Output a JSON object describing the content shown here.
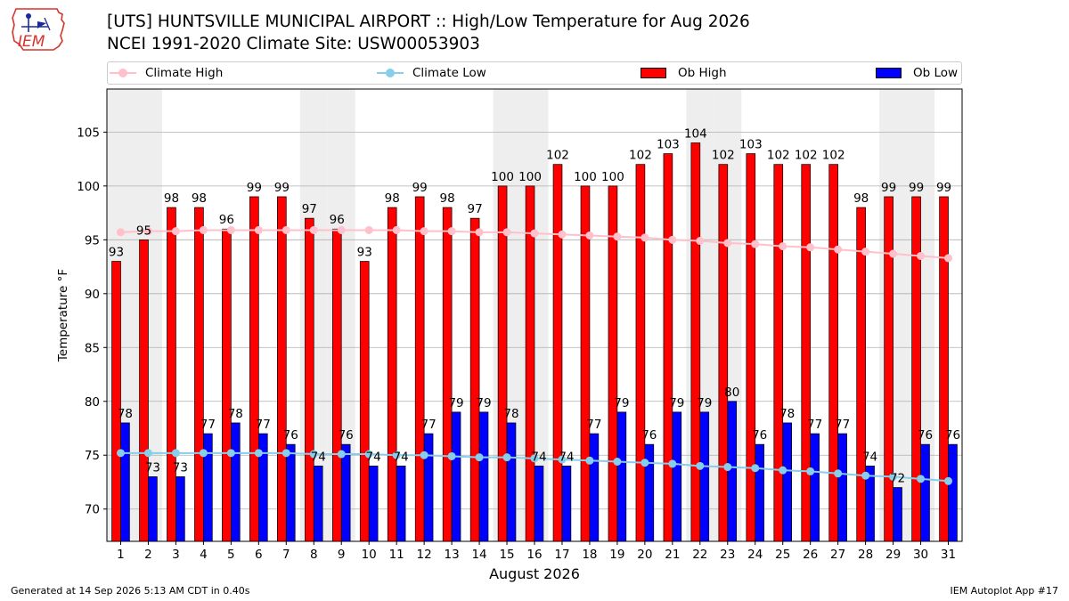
{
  "logo": {
    "text": "IEM",
    "color": "#d9342b"
  },
  "header": {
    "title_line1": "[UTS] HUNTSVILLE MUNICIPAL AIRPORT :: High/Low Temperature for Aug 2026",
    "title_line2": "NCEI 1991-2020 Climate Site: USW00053903"
  },
  "legend": {
    "climate_high": "Climate High",
    "climate_low": "Climate Low",
    "ob_high": "Ob High",
    "ob_low": "Ob Low"
  },
  "footer": {
    "left": "Generated at 14 Sep 2026 5:13 AM CDT in 0.40s",
    "right": "IEM Autoplot App #17"
  },
  "chart_data": {
    "type": "bar",
    "xlabel": "August 2026",
    "ylabel": "Temperature °F",
    "ylim": [
      67,
      109
    ],
    "yticks": [
      70,
      75,
      80,
      85,
      90,
      95,
      100,
      105
    ],
    "grid": true,
    "legend_position": "top",
    "categories": [
      1,
      2,
      3,
      4,
      5,
      6,
      7,
      8,
      9,
      10,
      11,
      12,
      13,
      14,
      15,
      16,
      17,
      18,
      19,
      20,
      21,
      22,
      23,
      24,
      25,
      26,
      27,
      28,
      29,
      30,
      31
    ],
    "weekend_shading_days": [
      1,
      2,
      8,
      9,
      15,
      16,
      22,
      23,
      29,
      30
    ],
    "colors": {
      "ob_high": "#ff0000",
      "ob_low": "#0000ff",
      "climate_high": "#ffc0cb",
      "climate_low": "#87ceeb",
      "weekend": "#eeeeee",
      "grid": "#b0b0b0"
    },
    "series": [
      {
        "name": "Ob High",
        "values": [
          93,
          95,
          98,
          98,
          96,
          99,
          99,
          97,
          96,
          93,
          98,
          99,
          98,
          97,
          100,
          100,
          102,
          100,
          100,
          102,
          103,
          104,
          102,
          103,
          102,
          102,
          102,
          98,
          99,
          99,
          99
        ]
      },
      {
        "name": "Ob Low",
        "values": [
          78,
          73,
          73,
          77,
          78,
          77,
          76,
          74,
          76,
          74,
          74,
          77,
          79,
          79,
          78,
          74,
          74,
          77,
          79,
          76,
          79,
          79,
          80,
          76,
          78,
          77,
          77,
          74,
          72,
          76,
          76
        ]
      },
      {
        "name": "Climate High",
        "values": [
          95.7,
          95.8,
          95.8,
          95.9,
          95.9,
          95.9,
          95.9,
          95.9,
          95.9,
          95.9,
          95.9,
          95.8,
          95.8,
          95.7,
          95.7,
          95.6,
          95.5,
          95.4,
          95.3,
          95.2,
          95.0,
          94.9,
          94.7,
          94.6,
          94.4,
          94.3,
          94.1,
          93.9,
          93.7,
          93.5,
          93.3
        ]
      },
      {
        "name": "Climate Low",
        "values": [
          75.2,
          75.2,
          75.2,
          75.2,
          75.2,
          75.2,
          75.2,
          75.1,
          75.1,
          75.1,
          75.0,
          75.0,
          74.9,
          74.8,
          74.8,
          74.7,
          74.6,
          74.5,
          74.4,
          74.3,
          74.2,
          74.0,
          73.9,
          73.8,
          73.6,
          73.5,
          73.3,
          73.1,
          73.0,
          72.8,
          72.6
        ]
      }
    ]
  }
}
